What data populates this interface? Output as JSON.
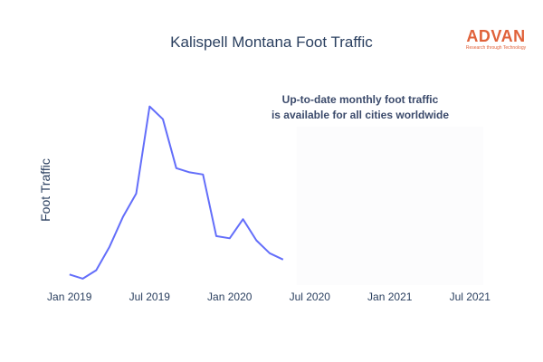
{
  "chart_data": {
    "type": "line",
    "title": "Kalispell Montana Foot Traffic",
    "xlabel": "",
    "ylabel": "Foot Traffic",
    "x_ticks": [
      "Jan 2019",
      "Jul 2019",
      "Jan 2020",
      "Jul 2020",
      "Jan 2021",
      "Jul 2021"
    ],
    "x_range": [
      "2018-12",
      "2021-08"
    ],
    "y_range": [
      0,
      100
    ],
    "y_ticks_shown": false,
    "grid": false,
    "annotation": [
      "Up-to-date monthly foot traffic",
      "is available for all cities worldwide"
    ],
    "shaded_region": {
      "from": "2020-06",
      "to": "2021-08",
      "color": "#fcfcfd"
    },
    "series": [
      {
        "color": "#636efa",
        "x": [
          "2019-01",
          "2019-02",
          "2019-03",
          "2019-04",
          "2019-05",
          "2019-06",
          "2019-07",
          "2019-08",
          "2019-09",
          "2019-10",
          "2019-11",
          "2019-12",
          "2020-01",
          "2020-02",
          "2020-03",
          "2020-04",
          "2020-05"
        ],
        "y": [
          5,
          3,
          7,
          18,
          32,
          43,
          84,
          78,
          55,
          53,
          52,
          23,
          22,
          31,
          21,
          15,
          12
        ]
      }
    ]
  },
  "logo": {
    "name": "ADVAN",
    "tagline": "Research through Technology"
  }
}
